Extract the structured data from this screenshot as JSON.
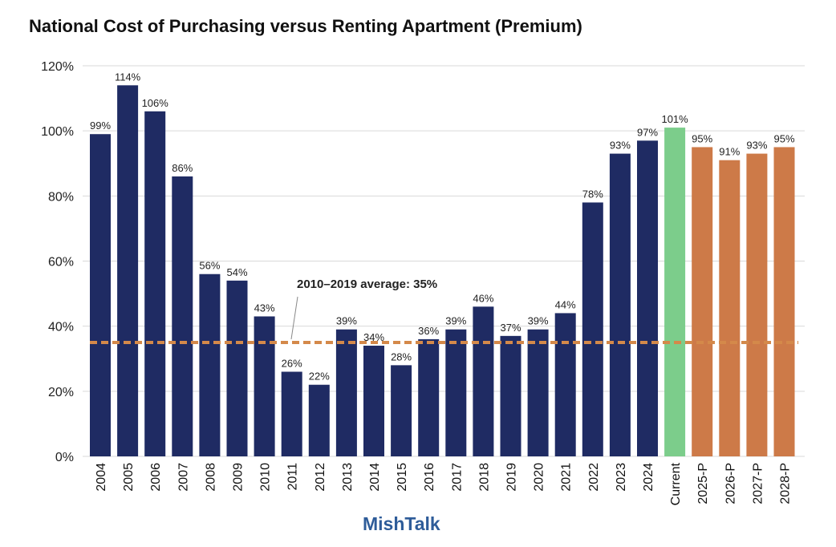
{
  "chart_data": {
    "type": "bar",
    "title": "National Cost of Purchasing versus Renting Apartment (Premium)",
    "categories": [
      "2004",
      "2005",
      "2006",
      "2007",
      "2008",
      "2009",
      "2010",
      "2011",
      "2012",
      "2013",
      "2014",
      "2015",
      "2016",
      "2017",
      "2018",
      "2019",
      "2020",
      "2021",
      "2022",
      "2023",
      "2024",
      "Current",
      "2025-P",
      "2026-P",
      "2027-P",
      "2028-P"
    ],
    "values": [
      99,
      114,
      106,
      86,
      56,
      54,
      43,
      26,
      22,
      39,
      34,
      28,
      36,
      39,
      46,
      37,
      39,
      44,
      78,
      93,
      97,
      101,
      95,
      91,
      93,
      95
    ],
    "data_labels": [
      "99%",
      "114%",
      "106%",
      "86%",
      "56%",
      "54%",
      "43%",
      "26%",
      "22%",
      "39%",
      "34%",
      "28%",
      "36%",
      "39%",
      "46%",
      "37%",
      "39%",
      "44%",
      "78%",
      "93%",
      "97%",
      "101%",
      "95%",
      "91%",
      "93%",
      "95%"
    ],
    "bar_groups": [
      "historical",
      "historical",
      "historical",
      "historical",
      "historical",
      "historical",
      "historical",
      "historical",
      "historical",
      "historical",
      "historical",
      "historical",
      "historical",
      "historical",
      "historical",
      "historical",
      "historical",
      "historical",
      "historical",
      "historical",
      "historical",
      "current",
      "projected",
      "projected",
      "projected",
      "projected"
    ],
    "colors": {
      "historical": "#1f2b63",
      "current": "#7ccd8b",
      "projected": "#cd7a48",
      "average_line": "#d4894a",
      "grid": "#d9d9d9",
      "watermark": "#2e5c99"
    },
    "ylim": [
      0,
      120
    ],
    "yticks": [
      0,
      20,
      40,
      60,
      80,
      100,
      120
    ],
    "ytick_labels": [
      "0%",
      "20%",
      "40%",
      "60%",
      "80%",
      "100%",
      "120%"
    ],
    "grid": true,
    "xlabel": "",
    "ylabel": "",
    "average_line": {
      "value": 35,
      "label": "2010–2019 average: 35%"
    }
  },
  "watermark": "MishTalk"
}
